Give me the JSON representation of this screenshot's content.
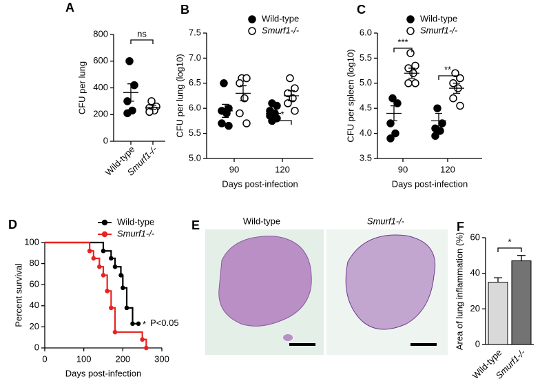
{
  "chart_data": [
    {
      "type": "strip",
      "label": "A",
      "ylabel": "CFU per lung",
      "categories": [
        "Wild-type",
        "Smurf1-/-"
      ],
      "groups": [
        {
          "values": [
            600,
            420,
            300,
            230,
            210
          ],
          "mean": 365,
          "sem": 65,
          "fill": true,
          "color": "#000000"
        },
        {
          "values": [
            300,
            260,
            250,
            230,
            220
          ],
          "mean": 255,
          "sem": 15,
          "fill": false,
          "color": "#000000"
        }
      ],
      "ylim": [
        0,
        800
      ],
      "yticks": [
        0,
        200,
        400,
        600,
        800
      ],
      "annotations": [
        "ns"
      ]
    },
    {
      "type": "strip",
      "label": "B",
      "ylabel": "CFU per lung (log10)",
      "xlabel": "Days post-infection",
      "categories": [
        "90",
        "120"
      ],
      "series": [
        {
          "name": "Wild-type",
          "fill": true,
          "color": "#000000",
          "values": [
            [
              6.5,
              6.0,
              5.95,
              5.9,
              5.7,
              5.65
            ],
            [
              6.1,
              6.05,
              5.95,
              5.9,
              5.85,
              5.8,
              5.75
            ]
          ],
          "mean": [
            5.95,
            5.9
          ],
          "sem": [
            0.13,
            0.05
          ]
        },
        {
          "name": "Smurf1-/-",
          "fill": false,
          "color": "#000000",
          "values": [
            [
              6.6,
              6.6,
              6.5,
              6.2,
              5.9,
              5.7
            ],
            [
              6.6,
              6.4,
              6.3,
              6.2,
              6.1,
              5.95
            ]
          ],
          "mean": [
            6.3,
            6.25
          ],
          "sem": [
            0.15,
            0.1
          ]
        }
      ],
      "ylim": [
        5,
        7.5
      ],
      "yticks": [
        {
          "value": 5,
          "label": "5.0"
        },
        {
          "value": 5.5,
          "label": "5.5"
        },
        {
          "value": 6,
          "label": "6.0"
        },
        {
          "value": 6.5,
          "label": "6.5"
        },
        {
          "value": 7,
          "label": "7.0"
        },
        {
          "value": 7.5,
          "label": "7.5"
        }
      ],
      "annotations": [
        "*"
      ]
    },
    {
      "type": "strip",
      "label": "C",
      "ylabel": "CFU per spleen (log10)",
      "xlabel": "Days post-infection",
      "categories": [
        "90",
        "120"
      ],
      "series": [
        {
          "name": "Wild-type",
          "fill": true,
          "color": "#000000",
          "values": [
            [
              4.7,
              4.6,
              4.2,
              4.0,
              3.9
            ],
            [
              4.5,
              4.2,
              4.1,
              4.05,
              3.95
            ]
          ],
          "mean": [
            4.4,
            4.25
          ],
          "sem": [
            0.15,
            0.15
          ]
        },
        {
          "name": "Smurf1-/-",
          "fill": false,
          "color": "#000000",
          "values": [
            [
              5.6,
              5.35,
              5.3,
              5.2,
              5.0,
              5.0
            ],
            [
              5.2,
              5.1,
              5.0,
              4.9,
              4.7,
              4.55
            ]
          ],
          "mean": [
            5.2,
            4.9
          ],
          "sem": [
            0.1,
            0.1
          ]
        }
      ],
      "ylim": [
        3.5,
        6
      ],
      "yticks": [
        {
          "value": 3.5,
          "label": "3.5"
        },
        {
          "value": 4,
          "label": "4.0"
        },
        {
          "value": 4.5,
          "label": "4.5"
        },
        {
          "value": 5,
          "label": "5.0"
        },
        {
          "value": 5.5,
          "label": "5.5"
        },
        {
          "value": 6,
          "label": "6.0"
        }
      ],
      "annotations": [
        "***",
        "**"
      ]
    },
    {
      "type": "survival",
      "label": "D",
      "ylabel": "Percent survival",
      "xlabel": "Days post-infection",
      "series": [
        {
          "name": "Wild-type",
          "color": "#000000",
          "x": [
            0,
            150,
            170,
            180,
            195,
            200,
            210,
            225,
            240
          ],
          "values": [
            100,
            92,
            85,
            77,
            69,
            57,
            38,
            23,
            23
          ]
        },
        {
          "name": "Smurf1-/-",
          "color": "#e8231f",
          "x": [
            0,
            115,
            125,
            140,
            150,
            160,
            170,
            180,
            250,
            260
          ],
          "values": [
            100,
            92,
            85,
            77,
            69,
            54,
            38,
            15,
            8,
            0
          ]
        }
      ],
      "xlim": [
        0,
        300
      ],
      "xticks": [
        0,
        100,
        200,
        300
      ],
      "ylim": [
        0,
        100
      ],
      "yticks": [
        0,
        20,
        40,
        60,
        80,
        100
      ],
      "annotations": [
        "*",
        "P<0.05"
      ]
    },
    {
      "type": "image",
      "label": "E",
      "titles": [
        "Wild-type",
        "Smurf1-/-"
      ]
    },
    {
      "type": "bar",
      "label": "F",
      "ylabel": "Area of lung inflammation (%)",
      "categories": [
        "Wild-type",
        "Smurf1-/-"
      ],
      "values": [
        35,
        47
      ],
      "errors": [
        2.5,
        3
      ],
      "colors": [
        "#d9d9d9",
        "#737373"
      ],
      "ylim": [
        0,
        60
      ],
      "yticks": [
        0,
        20,
        40,
        60
      ],
      "annotations": [
        "*"
      ]
    }
  ]
}
